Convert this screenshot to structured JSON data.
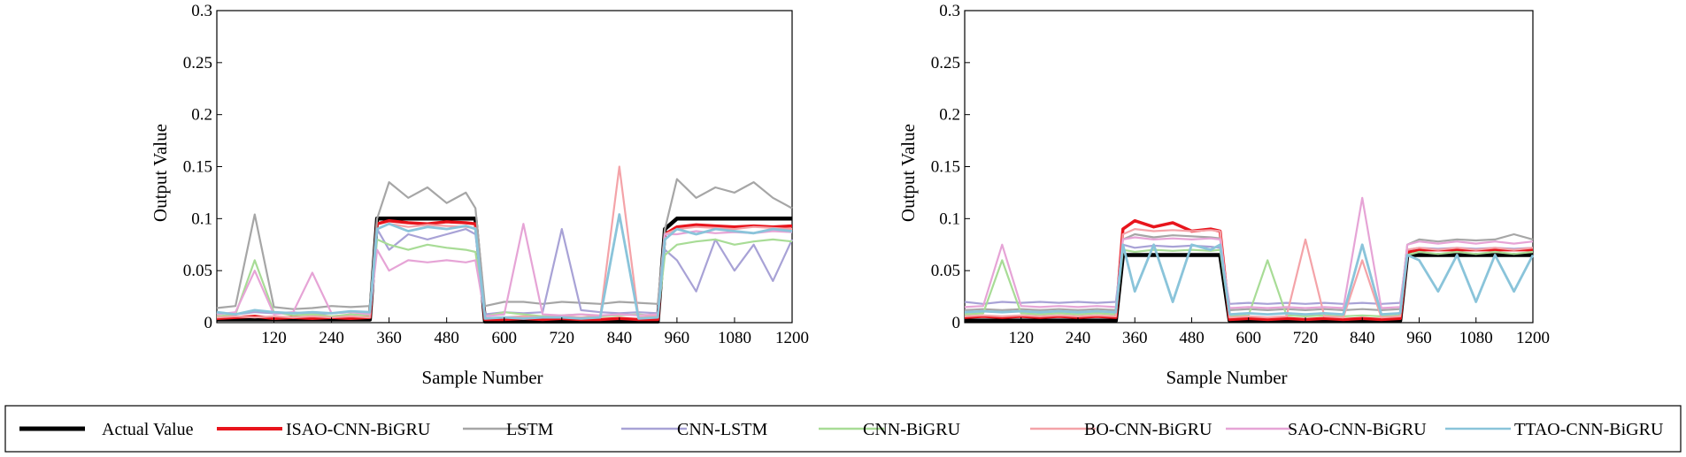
{
  "chart_data": [
    {
      "type": "line",
      "title": "",
      "xlabel": "Sample Number",
      "ylabel": "Output Value",
      "xlim": [
        1,
        1200
      ],
      "ylim": [
        0,
        0.3
      ],
      "xticks": [
        120,
        240,
        360,
        480,
        600,
        720,
        840,
        960,
        1080,
        1200
      ],
      "xtick_labels": [
        "120",
        "240",
        "360",
        "480",
        "600",
        "720",
        "840",
        "960",
        "1080",
        "1200"
      ],
      "yticks": [
        0,
        0.05,
        0.1,
        0.15,
        0.2,
        0.25,
        0.3
      ],
      "ytick_labels": [
        "0",
        "0.05",
        "0.1",
        "0.15",
        "0.2",
        "0.25",
        "0.3"
      ],
      "x": [
        1,
        40,
        80,
        120,
        160,
        200,
        240,
        280,
        320,
        335,
        360,
        400,
        440,
        480,
        520,
        540,
        560,
        600,
        640,
        680,
        720,
        760,
        800,
        840,
        880,
        920,
        935,
        960,
        1000,
        1040,
        1080,
        1120,
        1160,
        1200
      ],
      "series": [
        {
          "name": "Actual Value",
          "values": [
            0.003,
            0.003,
            0.003,
            0.003,
            0.003,
            0.003,
            0.003,
            0.003,
            0.003,
            0.1,
            0.1,
            0.1,
            0.1,
            0.1,
            0.1,
            0.1,
            0.001,
            0.001,
            0.001,
            0.001,
            0.001,
            0.001,
            0.001,
            0.001,
            0.001,
            0.001,
            0.09,
            0.1,
            0.1,
            0.1,
            0.1,
            0.1,
            0.1,
            0.1
          ]
        },
        {
          "name": "ISAO-CNN-BiGRU",
          "values": [
            0.004,
            0.005,
            0.006,
            0.004,
            0.005,
            0.004,
            0.005,
            0.004,
            0.005,
            0.095,
            0.098,
            0.096,
            0.095,
            0.097,
            0.096,
            0.095,
            0.003,
            0.003,
            0.004,
            0.003,
            0.004,
            0.003,
            0.003,
            0.004,
            0.003,
            0.003,
            0.085,
            0.092,
            0.094,
            0.093,
            0.092,
            0.093,
            0.092,
            0.093
          ]
        },
        {
          "name": "LSTM",
          "values": [
            0.014,
            0.016,
            0.104,
            0.015,
            0.013,
            0.014,
            0.016,
            0.015,
            0.016,
            0.1,
            0.135,
            0.12,
            0.13,
            0.115,
            0.125,
            0.11,
            0.016,
            0.02,
            0.02,
            0.018,
            0.02,
            0.019,
            0.018,
            0.02,
            0.019,
            0.018,
            0.09,
            0.138,
            0.12,
            0.13,
            0.125,
            0.135,
            0.12,
            0.11
          ]
        },
        {
          "name": "CNN-LSTM",
          "values": [
            0.01,
            0.008,
            0.01,
            0.009,
            0.01,
            0.008,
            0.009,
            0.01,
            0.009,
            0.09,
            0.07,
            0.085,
            0.08,
            0.085,
            0.09,
            0.085,
            0.008,
            0.01,
            0.009,
            0.01,
            0.09,
            0.012,
            0.01,
            0.009,
            0.01,
            0.009,
            0.07,
            0.06,
            0.03,
            0.08,
            0.05,
            0.075,
            0.04,
            0.08
          ]
        },
        {
          "name": "CNN-BiGRU",
          "values": [
            0.006,
            0.008,
            0.06,
            0.01,
            0.007,
            0.008,
            0.006,
            0.008,
            0.007,
            0.08,
            0.075,
            0.07,
            0.075,
            0.072,
            0.07,
            0.068,
            0.006,
            0.01,
            0.008,
            0.006,
            0.007,
            0.008,
            0.006,
            0.007,
            0.008,
            0.006,
            0.065,
            0.075,
            0.078,
            0.08,
            0.075,
            0.078,
            0.08,
            0.078
          ]
        },
        {
          "name": "BO-CNN-BiGRU",
          "values": [
            0.005,
            0.006,
            0.005,
            0.006,
            0.005,
            0.006,
            0.005,
            0.006,
            0.005,
            0.09,
            0.095,
            0.092,
            0.094,
            0.093,
            0.092,
            0.091,
            0.004,
            0.005,
            0.006,
            0.005,
            0.006,
            0.005,
            0.006,
            0.15,
            0.005,
            0.006,
            0.085,
            0.09,
            0.092,
            0.091,
            0.09,
            0.092,
            0.091,
            0.09
          ]
        },
        {
          "name": "SAO-CNN-BiGRU",
          "values": [
            0.008,
            0.01,
            0.05,
            0.008,
            0.01,
            0.048,
            0.009,
            0.01,
            0.008,
            0.07,
            0.05,
            0.06,
            0.058,
            0.06,
            0.058,
            0.06,
            0.006,
            0.008,
            0.095,
            0.008,
            0.007,
            0.008,
            0.007,
            0.008,
            0.007,
            0.008,
            0.085,
            0.085,
            0.088,
            0.086,
            0.087,
            0.086,
            0.088,
            0.087
          ]
        },
        {
          "name": "TTAO-CNN-BiGRU",
          "values": [
            0.01,
            0.008,
            0.012,
            0.01,
            0.009,
            0.01,
            0.009,
            0.011,
            0.01,
            0.09,
            0.095,
            0.088,
            0.092,
            0.09,
            0.093,
            0.09,
            0.004,
            0.005,
            0.004,
            0.005,
            0.005,
            0.004,
            0.005,
            0.104,
            0.004,
            0.005,
            0.08,
            0.09,
            0.085,
            0.09,
            0.088,
            0.086,
            0.09,
            0.088
          ]
        }
      ]
    },
    {
      "type": "line",
      "title": "",
      "xlabel": "Sample Number",
      "ylabel": "Output Value",
      "xlim": [
        1,
        1200
      ],
      "ylim": [
        0,
        0.3
      ],
      "xticks": [
        120,
        240,
        360,
        480,
        600,
        720,
        840,
        960,
        1080,
        1200
      ],
      "xtick_labels": [
        "120",
        "240",
        "360",
        "480",
        "600",
        "720",
        "840",
        "960",
        "1080",
        "1200"
      ],
      "yticks": [
        0,
        0.05,
        0.1,
        0.15,
        0.2,
        0.25,
        0.3
      ],
      "ytick_labels": [
        "0",
        "0.05",
        "0.1",
        "0.15",
        "0.2",
        "0.25",
        "0.3"
      ],
      "x": [
        1,
        40,
        80,
        120,
        160,
        200,
        240,
        280,
        320,
        335,
        360,
        400,
        440,
        480,
        520,
        540,
        560,
        600,
        640,
        680,
        720,
        760,
        800,
        840,
        880,
        920,
        935,
        960,
        1000,
        1040,
        1080,
        1120,
        1160,
        1200
      ],
      "series": [
        {
          "name": "Actual Value",
          "values": [
            0.002,
            0.002,
            0.002,
            0.002,
            0.002,
            0.002,
            0.002,
            0.002,
            0.002,
            0.065,
            0.065,
            0.065,
            0.065,
            0.065,
            0.065,
            0.065,
            0.002,
            0.002,
            0.002,
            0.002,
            0.002,
            0.002,
            0.002,
            0.002,
            0.002,
            0.002,
            0.065,
            0.065,
            0.065,
            0.065,
            0.065,
            0.065,
            0.065,
            0.065
          ]
        },
        {
          "name": "ISAO-CNN-BiGRU",
          "values": [
            0.005,
            0.006,
            0.005,
            0.006,
            0.005,
            0.006,
            0.005,
            0.006,
            0.005,
            0.09,
            0.098,
            0.092,
            0.096,
            0.088,
            0.09,
            0.088,
            0.003,
            0.004,
            0.003,
            0.004,
            0.003,
            0.004,
            0.003,
            0.004,
            0.003,
            0.004,
            0.068,
            0.07,
            0.07,
            0.07,
            0.07,
            0.07,
            0.07,
            0.07
          ]
        },
        {
          "name": "LSTM",
          "values": [
            0.012,
            0.013,
            0.012,
            0.013,
            0.012,
            0.013,
            0.012,
            0.013,
            0.012,
            0.08,
            0.085,
            0.082,
            0.084,
            0.083,
            0.082,
            0.081,
            0.012,
            0.013,
            0.012,
            0.013,
            0.012,
            0.013,
            0.012,
            0.013,
            0.012,
            0.013,
            0.075,
            0.08,
            0.078,
            0.08,
            0.079,
            0.08,
            0.085,
            0.08
          ]
        },
        {
          "name": "CNN-LSTM",
          "values": [
            0.02,
            0.018,
            0.02,
            0.019,
            0.02,
            0.019,
            0.02,
            0.019,
            0.02,
            0.075,
            0.072,
            0.074,
            0.073,
            0.074,
            0.073,
            0.072,
            0.018,
            0.019,
            0.018,
            0.019,
            0.018,
            0.019,
            0.018,
            0.019,
            0.018,
            0.019,
            0.07,
            0.072,
            0.071,
            0.072,
            0.071,
            0.072,
            0.071,
            0.072
          ]
        },
        {
          "name": "CNN-BiGRU",
          "values": [
            0.008,
            0.009,
            0.06,
            0.009,
            0.008,
            0.009,
            0.008,
            0.009,
            0.008,
            0.07,
            0.068,
            0.07,
            0.069,
            0.07,
            0.069,
            0.07,
            0.006,
            0.007,
            0.06,
            0.007,
            0.006,
            0.007,
            0.006,
            0.007,
            0.006,
            0.007,
            0.065,
            0.068,
            0.066,
            0.068,
            0.066,
            0.068,
            0.066,
            0.068
          ]
        },
        {
          "name": "BO-CNN-BiGRU",
          "values": [
            0.006,
            0.007,
            0.006,
            0.007,
            0.006,
            0.007,
            0.006,
            0.007,
            0.006,
            0.085,
            0.09,
            0.088,
            0.089,
            0.088,
            0.089,
            0.088,
            0.005,
            0.006,
            0.005,
            0.006,
            0.08,
            0.006,
            0.005,
            0.06,
            0.005,
            0.006,
            0.07,
            0.072,
            0.07,
            0.072,
            0.07,
            0.072,
            0.07,
            0.072
          ]
        },
        {
          "name": "SAO-CNN-BiGRU",
          "values": [
            0.015,
            0.016,
            0.075,
            0.016,
            0.015,
            0.016,
            0.015,
            0.016,
            0.015,
            0.08,
            0.082,
            0.08,
            0.081,
            0.08,
            0.081,
            0.08,
            0.014,
            0.015,
            0.014,
            0.015,
            0.014,
            0.015,
            0.014,
            0.12,
            0.014,
            0.015,
            0.075,
            0.078,
            0.076,
            0.078,
            0.076,
            0.078,
            0.076,
            0.078
          ]
        },
        {
          "name": "TTAO-CNN-BiGRU",
          "values": [
            0.01,
            0.011,
            0.01,
            0.011,
            0.01,
            0.011,
            0.01,
            0.011,
            0.01,
            0.075,
            0.03,
            0.075,
            0.02,
            0.075,
            0.07,
            0.075,
            0.008,
            0.009,
            0.008,
            0.009,
            0.008,
            0.009,
            0.008,
            0.075,
            0.008,
            0.009,
            0.065,
            0.06,
            0.03,
            0.065,
            0.02,
            0.065,
            0.03,
            0.065
          ]
        }
      ]
    }
  ],
  "legend": {
    "placement": "bottom",
    "items": [
      {
        "label": "Actual Value",
        "color": "#000000"
      },
      {
        "label": "ISAO-CNN-BiGRU",
        "color": "#e8141c"
      },
      {
        "label": "LSTM",
        "color": "#a6a6a6"
      },
      {
        "label": "CNN-LSTM",
        "color": "#a8a2d6"
      },
      {
        "label": "CNN-BiGRU",
        "color": "#a8dc96"
      },
      {
        "label": "BO-CNN-BiGRU",
        "color": "#f4a3a8"
      },
      {
        "label": "SAO-CNN-BiGRU",
        "color": "#e6a4d6"
      },
      {
        "label": "TTAO-CNN-BiGRU",
        "color": "#8ac4da"
      }
    ]
  }
}
